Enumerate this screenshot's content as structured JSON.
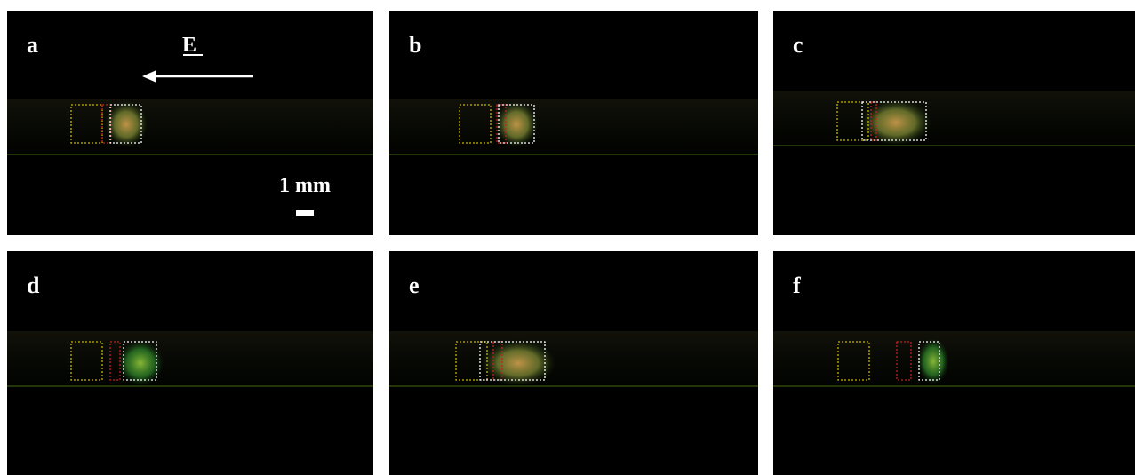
{
  "panels": [
    {
      "label": "a"
    },
    {
      "label": "b"
    },
    {
      "label": "c"
    },
    {
      "label": "d"
    },
    {
      "label": "e"
    },
    {
      "label": "f"
    }
  ],
  "field_label": "E",
  "scale_bar": "1 mm"
}
